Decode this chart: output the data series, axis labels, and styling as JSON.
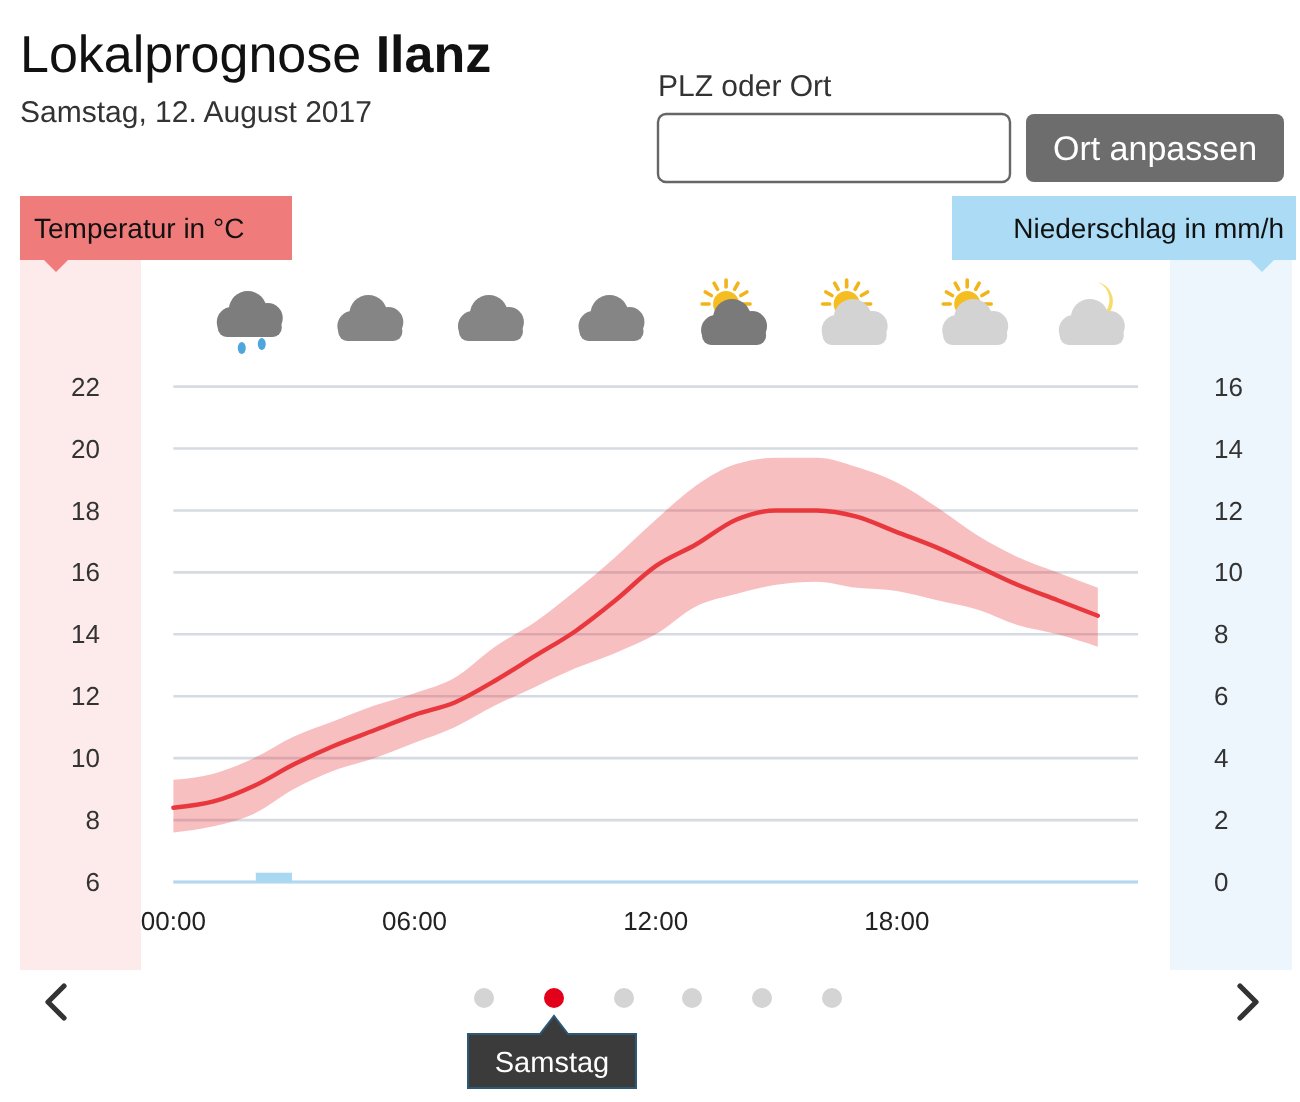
{
  "chart_data": {
    "type": "line",
    "title": "Lokalprognose Ilanz",
    "subtitle": "Samstag, 12. August 2017",
    "ylabel": "Temperatur in °C",
    "y2label": "Niederschlag in mm/h",
    "x": [
      0,
      1,
      2,
      3,
      4,
      5,
      6,
      7,
      8,
      9,
      10,
      11,
      12,
      13,
      14,
      15,
      16,
      17,
      18,
      19,
      20,
      21,
      22,
      23
    ],
    "xlim": [
      0,
      24
    ],
    "xticks": [
      {
        "value": 0,
        "label": "00:00"
      },
      {
        "value": 6,
        "label": "06:00"
      },
      {
        "value": 12,
        "label": "12:00"
      },
      {
        "value": 18,
        "label": "18:00"
      }
    ],
    "ylim": [
      6,
      22
    ],
    "yticks": [
      6,
      8,
      10,
      12,
      14,
      16,
      18,
      20,
      22
    ],
    "y2lim": [
      0,
      16
    ],
    "y2ticks": [
      0,
      2,
      4,
      6,
      8,
      10,
      12,
      14,
      16
    ],
    "grid": "y",
    "series": [
      {
        "color": "#e8383d",
        "values": [
          8.4,
          8.6,
          9.1,
          9.8,
          10.4,
          10.9,
          11.4,
          11.8,
          12.5,
          13.3,
          14.1,
          15.1,
          16.2,
          16.9,
          17.7,
          18.0,
          18.0,
          17.8,
          17.3,
          16.8,
          16.2,
          15.6,
          15.1,
          14.6
        ],
        "lower": [
          7.6,
          7.8,
          8.2,
          9.0,
          9.6,
          10.0,
          10.5,
          11.0,
          11.7,
          12.3,
          12.9,
          13.4,
          14.0,
          14.9,
          15.3,
          15.6,
          15.7,
          15.5,
          15.4,
          15.1,
          14.8,
          14.3,
          14.0,
          13.6
        ],
        "upper": [
          9.3,
          9.5,
          10.0,
          10.7,
          11.2,
          11.7,
          12.1,
          12.6,
          13.6,
          14.4,
          15.4,
          16.5,
          17.7,
          18.8,
          19.5,
          19.7,
          19.7,
          19.4,
          18.9,
          18.1,
          17.2,
          16.5,
          16.0,
          15.5
        ]
      },
      {
        "type": "bar",
        "axis": "y2",
        "color": "#a9d8f2",
        "x": [
          2.5
        ],
        "values": [
          0.3
        ]
      }
    ],
    "annotations": [
      "PLZ oder Ort",
      "Ort anpassen",
      "Samstag"
    ]
  }
}
